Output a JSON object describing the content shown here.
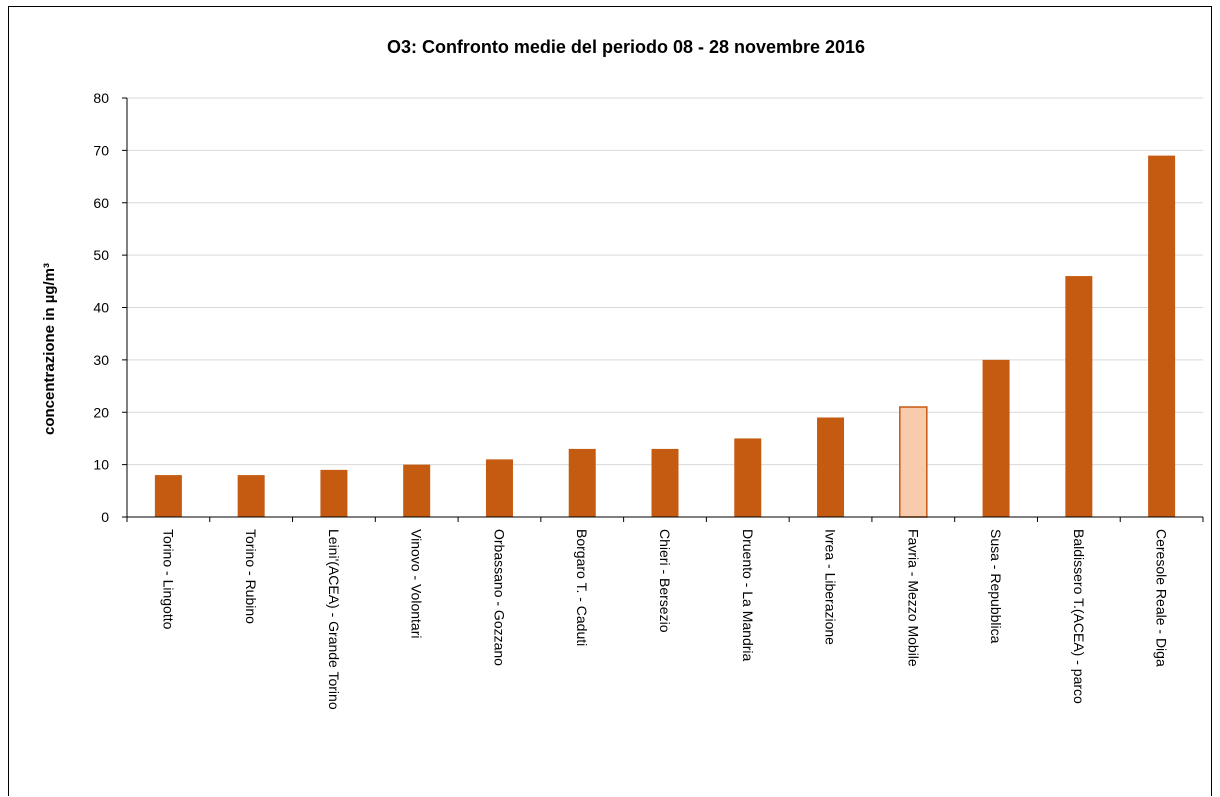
{
  "chart_data": {
    "type": "bar",
    "title": "O3: Confronto medie del periodo 08 - 28 novembre 2016",
    "xlabel": "",
    "ylabel": "concentrazione in µg/m³",
    "ylim": [
      0,
      80
    ],
    "yticks": [
      0,
      10,
      20,
      30,
      40,
      50,
      60,
      70,
      80
    ],
    "grid": true,
    "categories": [
      "Torino - Lingotto",
      "Torino - Rubino",
      "Leini'(ACEA) - Grande Torino",
      "Vinovo - Volontari",
      "Orbassano - Gozzano",
      "Borgaro T. - Caduti",
      "Chieri - Bersezio",
      "Druento - La Mandria",
      "Ivrea - Liberazione",
      "Favria - Mezzo Mobile",
      "Susa - Repubblica",
      "Baldissero T.(ACEA) - parco",
      "Ceresole Reale - Diga"
    ],
    "values": [
      8,
      8,
      9,
      10,
      11,
      13,
      13,
      15,
      19,
      21,
      30,
      46,
      69
    ],
    "highlight_index": 9,
    "colors": {
      "bar": "#C55A11",
      "highlight_fill": "#F8CBAD",
      "highlight_stroke": "#C55A11",
      "grid": "#D9D9D9",
      "axis": "#000000"
    }
  }
}
